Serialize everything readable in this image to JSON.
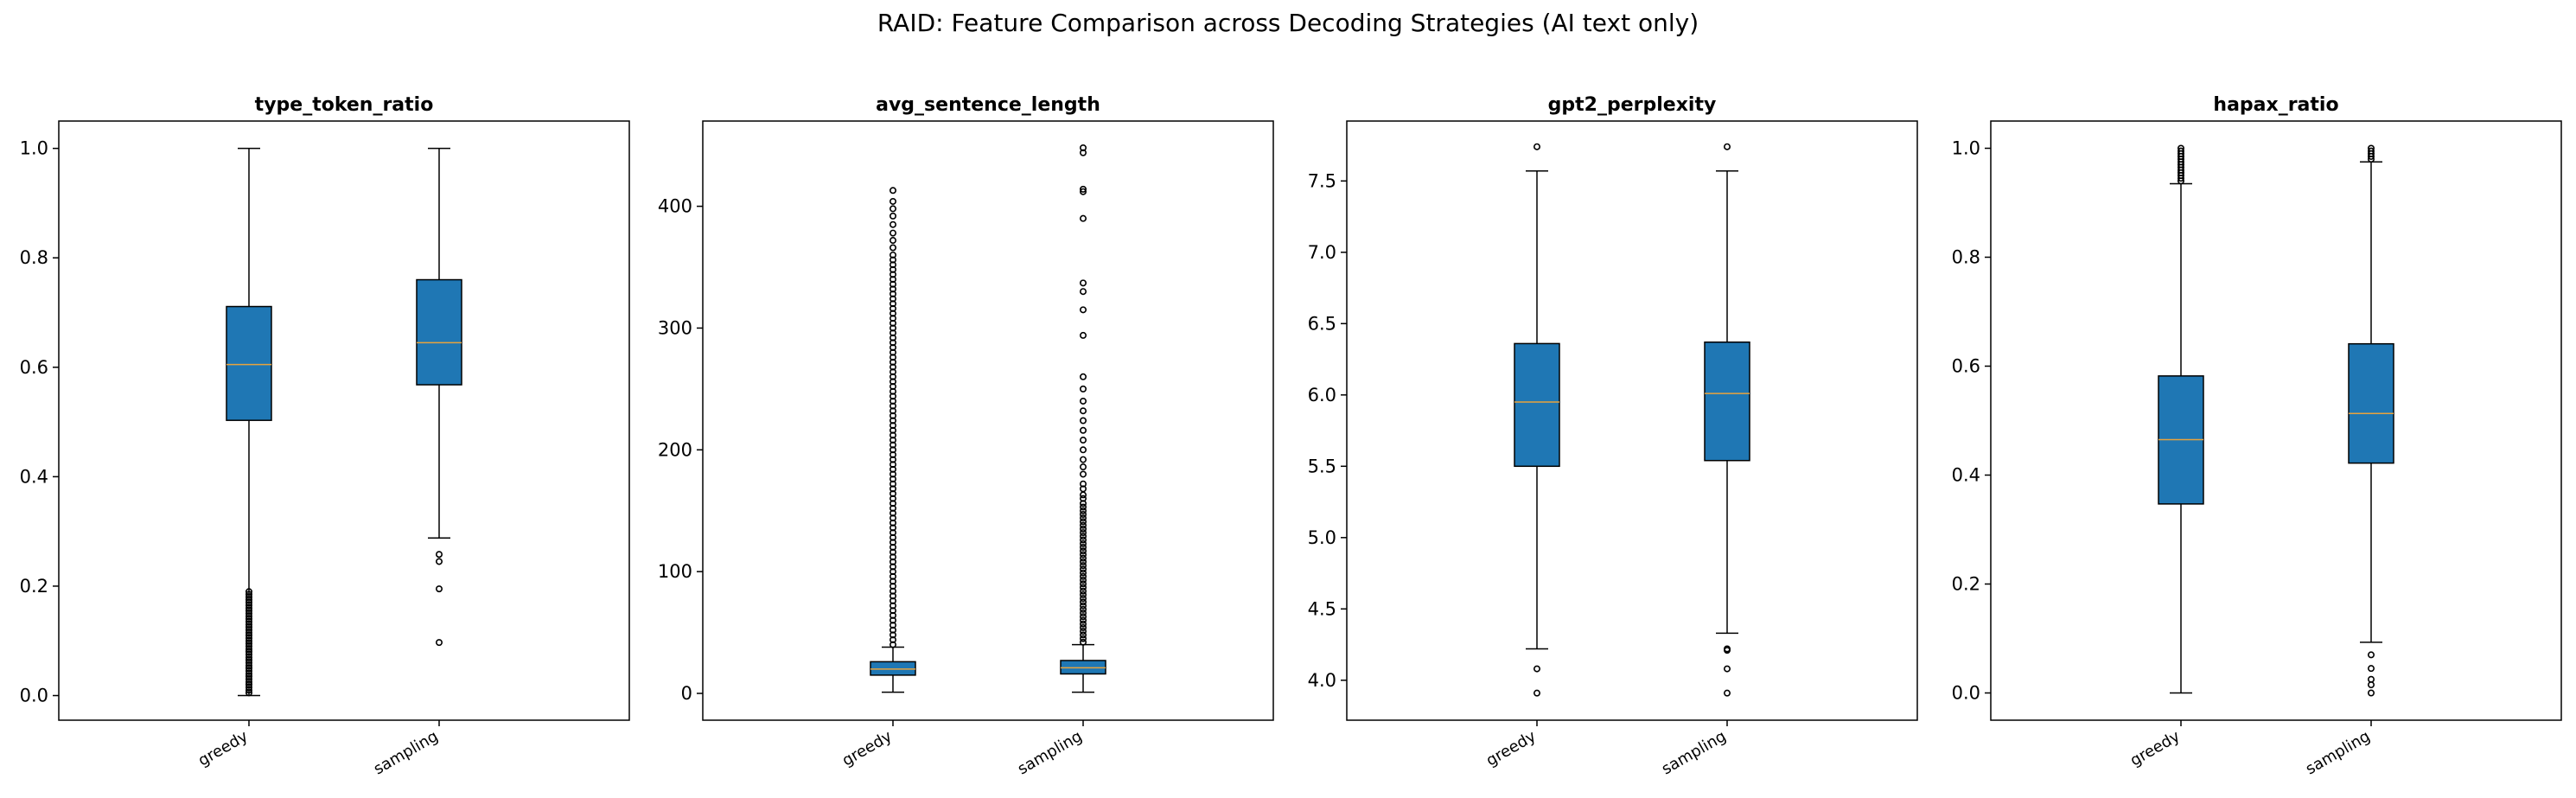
{
  "title": "RAID: Feature Comparison across Decoding Strategies (AI text only)",
  "colors": {
    "box_fill": "#1f77b4",
    "median": "#e8a33d",
    "line": "#000000"
  },
  "chart_data": [
    {
      "type": "boxplot",
      "title": "type_token_ratio",
      "categories": [
        "greedy",
        "sampling"
      ],
      "ylim": [
        -0.045,
        1.05
      ],
      "yticks": [
        0.0,
        0.2,
        0.4,
        0.6,
        0.8,
        1.0
      ],
      "ytick_labels": [
        "0.0",
        "0.2",
        "0.4",
        "0.6",
        "0.8",
        "1.0"
      ],
      "boxes": [
        {
          "whislo": 0.0,
          "q1": 0.503,
          "med": 0.605,
          "q3": 0.711,
          "whishi": 1.0,
          "fliers": [
            0.005,
            0.01,
            0.015,
            0.02,
            0.025,
            0.03,
            0.035,
            0.04,
            0.045,
            0.05,
            0.055,
            0.06,
            0.065,
            0.07,
            0.075,
            0.08,
            0.085,
            0.09,
            0.095,
            0.1,
            0.105,
            0.11,
            0.115,
            0.12,
            0.125,
            0.13,
            0.135,
            0.14,
            0.145,
            0.15,
            0.155,
            0.16,
            0.165,
            0.17,
            0.175,
            0.18,
            0.185,
            0.19
          ]
        },
        {
          "whislo": 0.288,
          "q1": 0.568,
          "med": 0.645,
          "q3": 0.76,
          "whishi": 1.0,
          "fliers": [
            0.097,
            0.195,
            0.245,
            0.258
          ]
        }
      ]
    },
    {
      "type": "boxplot",
      "title": "avg_sentence_length",
      "categories": [
        "greedy",
        "sampling"
      ],
      "ylim": [
        -22,
        470
      ],
      "yticks": [
        0,
        100,
        200,
        300,
        400
      ],
      "ytick_labels": [
        "0",
        "100",
        "200",
        "300",
        "400"
      ],
      "boxes": [
        {
          "whislo": 1,
          "q1": 15,
          "med": 20,
          "q3": 26,
          "whishi": 38,
          "fliers": [
            40,
            44,
            48,
            52,
            56,
            60,
            64,
            68,
            72,
            76,
            80,
            84,
            88,
            92,
            96,
            100,
            104,
            108,
            112,
            116,
            120,
            124,
            128,
            132,
            136,
            140,
            144,
            148,
            152,
            156,
            160,
            164,
            168,
            172,
            176,
            180,
            184,
            188,
            192,
            196,
            200,
            204,
            208,
            212,
            216,
            220,
            224,
            228,
            232,
            236,
            240,
            244,
            248,
            252,
            256,
            260,
            264,
            268,
            272,
            276,
            280,
            284,
            288,
            292,
            296,
            300,
            304,
            308,
            312,
            316,
            320,
            324,
            328,
            332,
            336,
            340,
            344,
            348,
            352,
            356,
            360,
            366,
            372,
            378,
            385,
            392,
            398,
            404,
            413
          ]
        },
        {
          "whislo": 1,
          "q1": 16,
          "med": 21,
          "q3": 27,
          "whishi": 40,
          "fliers": [
            42,
            45,
            48,
            51,
            54,
            57,
            60,
            63,
            66,
            69,
            72,
            75,
            78,
            81,
            84,
            87,
            90,
            93,
            96,
            99,
            102,
            105,
            108,
            111,
            114,
            117,
            120,
            123,
            126,
            129,
            132,
            135,
            138,
            141,
            144,
            147,
            150,
            153,
            156,
            160,
            163,
            168,
            172,
            180,
            186,
            192,
            200,
            208,
            216,
            224,
            232,
            240,
            250,
            260,
            294,
            315,
            330,
            337,
            390,
            412,
            414,
            444,
            448
          ]
        }
      ]
    },
    {
      "type": "boxplot",
      "title": "gpt2_perplexity",
      "categories": [
        "greedy",
        "sampling"
      ],
      "ylim": [
        3.72,
        7.92
      ],
      "yticks": [
        4.0,
        4.5,
        5.0,
        5.5,
        6.0,
        6.5,
        7.0,
        7.5
      ],
      "ytick_labels": [
        "4.0",
        "4.5",
        "5.0",
        "5.5",
        "6.0",
        "6.5",
        "7.0",
        "7.5"
      ],
      "boxes": [
        {
          "whislo": 4.22,
          "q1": 5.5,
          "med": 5.95,
          "q3": 6.36,
          "whishi": 7.57,
          "fliers": [
            3.91,
            4.08,
            7.74
          ]
        },
        {
          "whislo": 4.33,
          "q1": 5.54,
          "med": 6.01,
          "q3": 6.37,
          "whishi": 7.57,
          "fliers": [
            3.91,
            4.08,
            4.21,
            4.22,
            7.74
          ]
        }
      ]
    },
    {
      "type": "boxplot",
      "title": "hapax_ratio",
      "categories": [
        "greedy",
        "sampling"
      ],
      "ylim": [
        -0.05,
        1.05
      ],
      "yticks": [
        0.0,
        0.2,
        0.4,
        0.6,
        0.8,
        1.0
      ],
      "ytick_labels": [
        "0.0",
        "0.2",
        "0.4",
        "0.6",
        "0.8",
        "1.0"
      ],
      "boxes": [
        {
          "whislo": 0.0,
          "q1": 0.347,
          "med": 0.465,
          "q3": 0.582,
          "whishi": 0.935,
          "fliers": [
            0.94,
            0.945,
            0.95,
            0.955,
            0.96,
            0.965,
            0.97,
            0.975,
            0.98,
            0.985,
            0.99,
            0.995,
            1.0
          ]
        },
        {
          "whislo": 0.093,
          "q1": 0.422,
          "med": 0.513,
          "q3": 0.641,
          "whishi": 0.975,
          "fliers": [
            0.0,
            0.015,
            0.025,
            0.045,
            0.07,
            0.98,
            0.985,
            0.99,
            0.995,
            1.0
          ]
        }
      ]
    }
  ]
}
